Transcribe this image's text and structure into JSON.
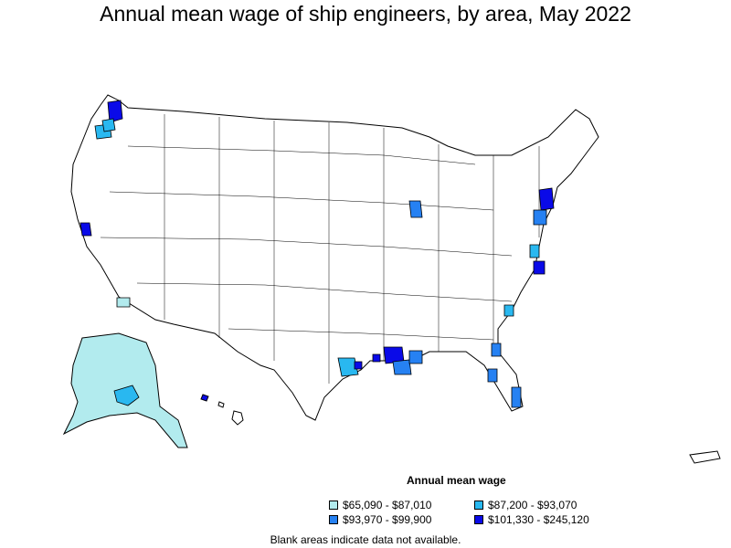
{
  "title": "Annual mean wage of ship engineers, by area, May 2022",
  "legend": {
    "title": "Annual mean wage",
    "items": [
      {
        "label": "$65,090 - $87,010",
        "color": "#b2ebee"
      },
      {
        "label": "$87,200 - $93,070",
        "color": "#29b8f0"
      },
      {
        "label": "$93,970 - $99,900",
        "color": "#2681f2"
      },
      {
        "label": "$101,330 - $245,120",
        "color": "#0a0ae8"
      }
    ]
  },
  "footnote": "Blank areas indicate data not available."
}
